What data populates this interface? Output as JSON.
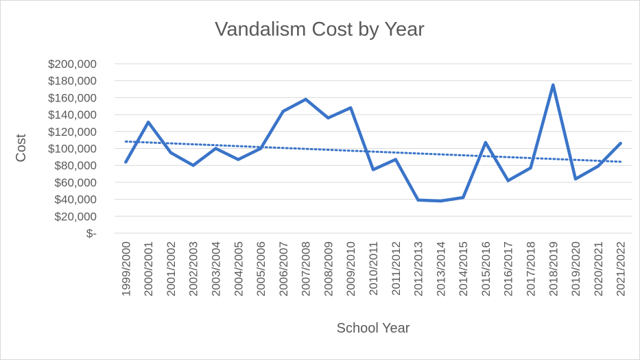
{
  "chart_data": {
    "type": "line",
    "title": "Vandalism Cost by Year",
    "xlabel": "School Year",
    "ylabel": "Cost",
    "ylim": [
      0,
      200000
    ],
    "y_ticks": [
      {
        "value": 200000,
        "label": "$200,000"
      },
      {
        "value": 180000,
        "label": "$180,000"
      },
      {
        "value": 160000,
        "label": "$160,000"
      },
      {
        "value": 140000,
        "label": "$140,000"
      },
      {
        "value": 120000,
        "label": "$120,000"
      },
      {
        "value": 100000,
        "label": "$100,000"
      },
      {
        "value": 80000,
        "label": "$80,000"
      },
      {
        "value": 60000,
        "label": "$60,000"
      },
      {
        "value": 40000,
        "label": "$40,000"
      },
      {
        "value": 20000,
        "label": "$20,000"
      },
      {
        "value": 0,
        "label": "$-"
      }
    ],
    "categories": [
      "1999/2000",
      "2000/2001",
      "2001/2002",
      "2002/2003",
      "2003/2004",
      "2004/2005",
      "2005/2006",
      "2006/2007",
      "2007/2008",
      "2008/2009",
      "2009/2010",
      "2010/2011",
      "2011/2012",
      "2012/2013",
      "2013/2014",
      "2014/2015",
      "2015/2016",
      "2016/2017",
      "2017/2018",
      "2018/2019",
      "2019/2020",
      "2020/2021",
      "2021/2022"
    ],
    "series": [
      {
        "values": [
          84000,
          131000,
          95000,
          80000,
          100000,
          87000,
          100000,
          144000,
          158000,
          136000,
          148000,
          75000,
          87000,
          39000,
          38000,
          42000,
          107000,
          62000,
          77000,
          175000,
          64000,
          79000,
          106000
        ],
        "color": "#3a74c9"
      }
    ],
    "trendline": {
      "type": "linear",
      "style": "dotted",
      "color": "#3a74c9"
    },
    "grid": true,
    "legend": "none"
  }
}
